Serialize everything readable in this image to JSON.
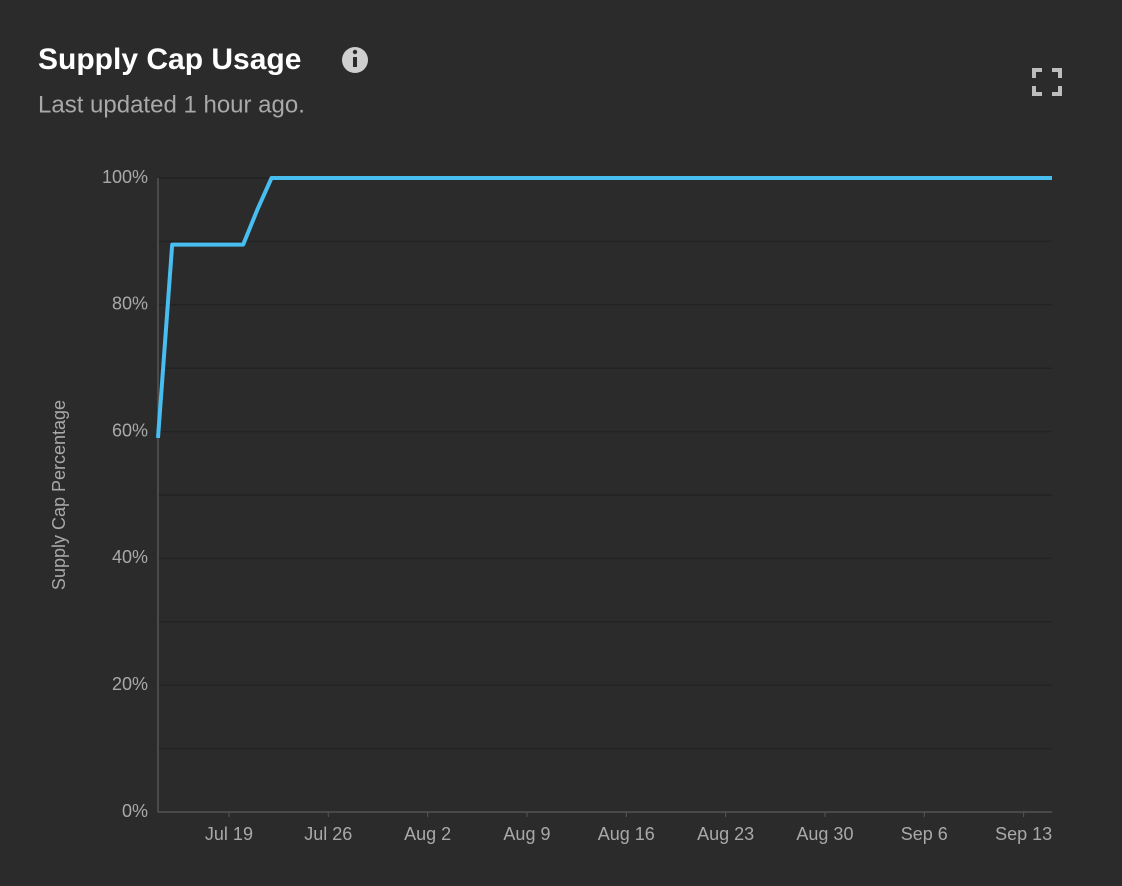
{
  "header": {
    "title": "Supply Cap Usage",
    "subtitle": "Last updated 1 hour ago."
  },
  "chart_data": {
    "type": "line",
    "y_label": "Supply Cap Percentage",
    "x": [
      "Jul 14",
      "Jul 15",
      "Jul 20",
      "Jul 21",
      "Jul 22",
      "Sep 15"
    ],
    "series": [
      {
        "name": "Supply Cap Usage",
        "color": "#47bdf0",
        "values": [
          59,
          89.5,
          89.5,
          95,
          100,
          100
        ]
      }
    ],
    "xlim": [
      "Jul 14",
      "Sep 15"
    ],
    "xticks": [
      "Jul 19",
      "Jul 26",
      "Aug 2",
      "Aug 9",
      "Aug 16",
      "Aug 23",
      "Aug 30",
      "Sep 6",
      "Sep 13"
    ],
    "ylim": [
      0,
      100
    ],
    "yticks": [
      {
        "value": 0,
        "label": "0%"
      },
      {
        "value": 20,
        "label": "20%"
      },
      {
        "value": 40,
        "label": "40%"
      },
      {
        "value": 60,
        "label": "60%"
      },
      {
        "value": 80,
        "label": "80%"
      },
      {
        "value": 100,
        "label": "100%"
      }
    ],
    "minor_yticks": [
      10,
      30,
      50,
      70,
      90
    ],
    "grid": true
  }
}
